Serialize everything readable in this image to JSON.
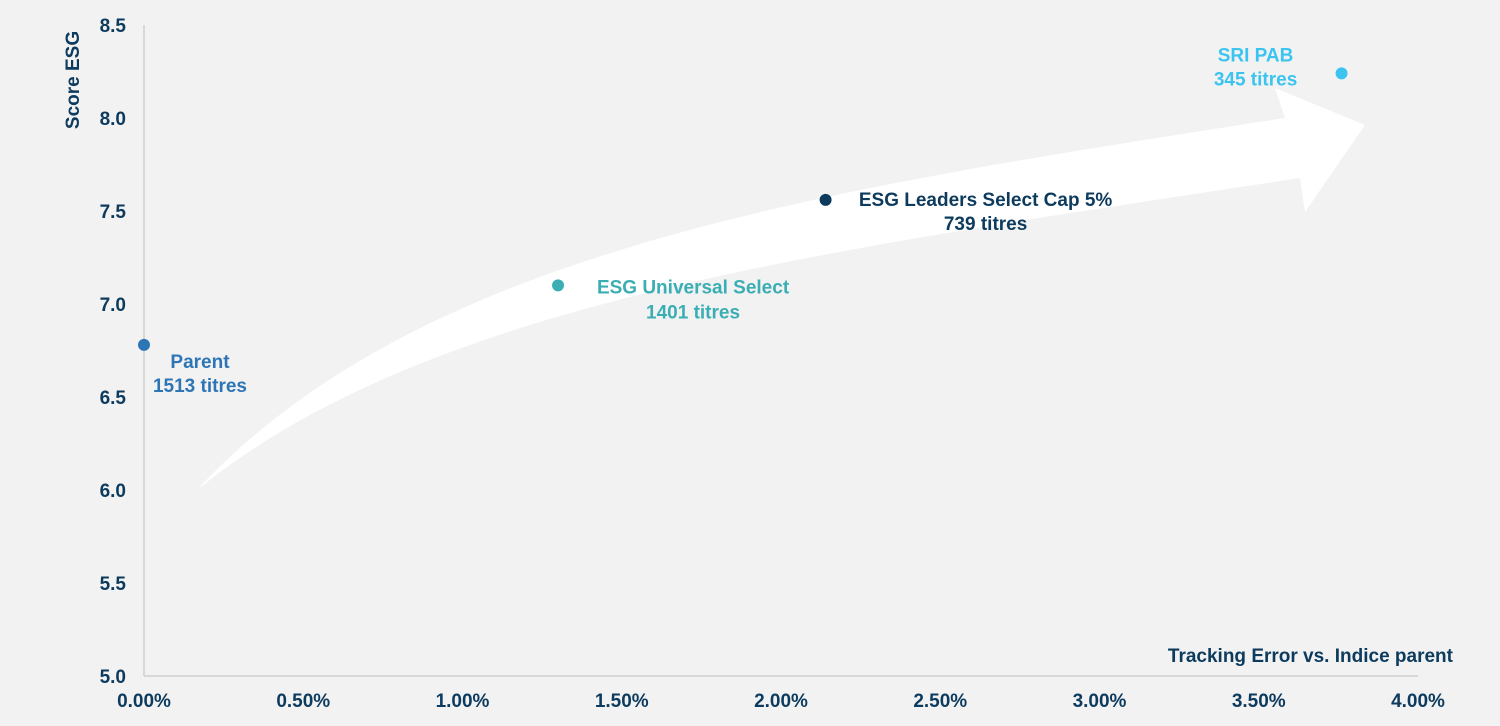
{
  "chart_data": {
    "type": "scatter",
    "xlabel": "Tracking Error vs. Indice parent",
    "ylabel": "Score ESG",
    "xlim": [
      0,
      4.0
    ],
    "ylim": [
      5.0,
      8.5
    ],
    "x_ticks": [
      "0.00%",
      "0.50%",
      "1.00%",
      "1.50%",
      "2.00%",
      "2.50%",
      "3.00%",
      "3.50%",
      "4.00%"
    ],
    "y_ticks": [
      "5.0",
      "5.5",
      "6.0",
      "6.5",
      "7.0",
      "7.5",
      "8.0",
      "8.5"
    ],
    "grid": false,
    "points": [
      {
        "name": "Parent",
        "count": "1513 titres",
        "x": 0.0,
        "y": 6.78,
        "color": "#2e75b6"
      },
      {
        "name": "ESG Universal Select",
        "count": "1401 titres",
        "x": 1.3,
        "y": 7.1,
        "color": "#3aaeb4"
      },
      {
        "name": "ESG Leaders Select Cap 5%",
        "count": "739 titres",
        "x": 2.14,
        "y": 7.56,
        "color": "#0d3b5e"
      },
      {
        "name": "SRI PAB",
        "count": "345 titres",
        "x": 3.76,
        "y": 8.24,
        "color": "#3cc4f0"
      }
    ]
  }
}
